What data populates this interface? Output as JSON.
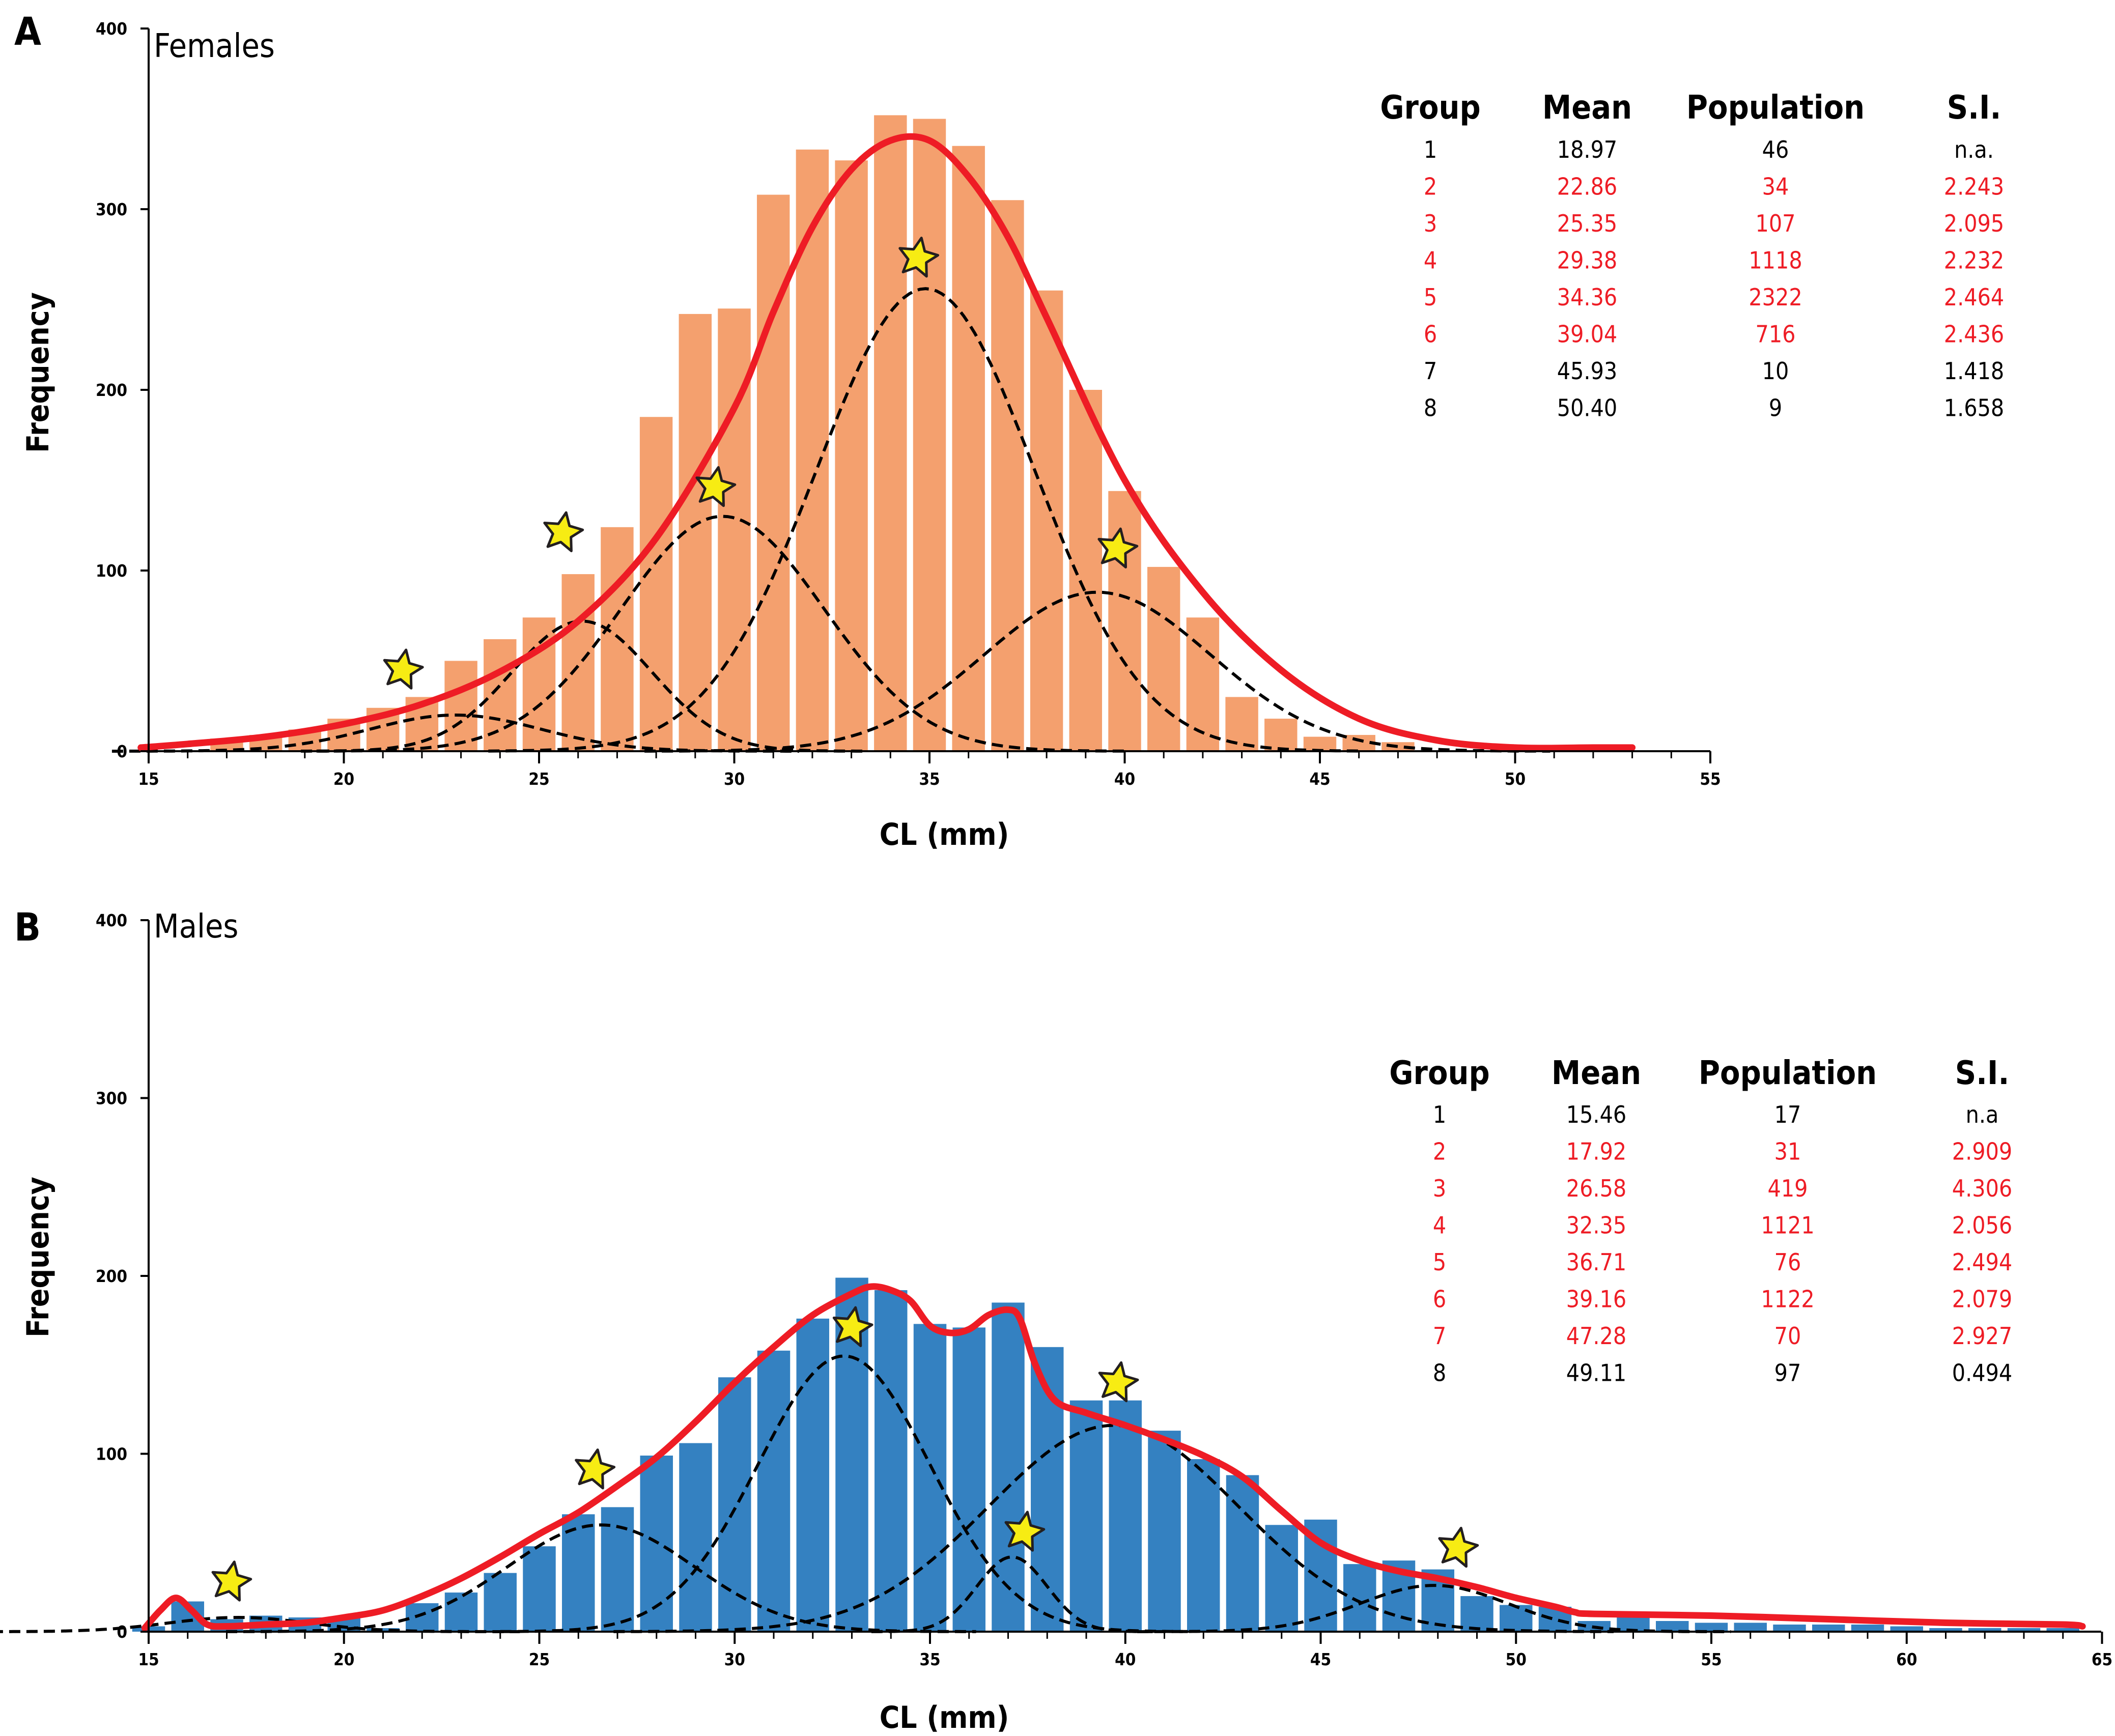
{
  "chart_data": [
    {
      "panel": "A",
      "type": "bar",
      "title": "Females",
      "xlabel": "CL (mm)",
      "ylabel": "Frequency",
      "xlim": [
        15,
        55
      ],
      "xticks": [
        15,
        20,
        25,
        30,
        35,
        40,
        45,
        50,
        55
      ],
      "ylim": [
        0,
        400
      ],
      "yticks": [
        0,
        100,
        200,
        300,
        400
      ],
      "bar_color": "#f4a06e",
      "fit_color": "#ee1c25",
      "component_color": "#000000",
      "star_color": "#f7ec13",
      "bins": {
        "x": [
          17,
          18,
          19,
          20,
          21,
          22,
          23,
          24,
          25,
          26,
          27,
          28,
          29,
          30,
          31,
          32,
          33,
          34,
          35,
          36,
          37,
          38,
          39,
          40,
          41,
          42,
          43,
          44,
          45,
          46,
          47
        ],
        "values": [
          7,
          9,
          12,
          18,
          24,
          30,
          50,
          62,
          74,
          98,
          124,
          185,
          242,
          245,
          308,
          333,
          327,
          352,
          350,
          335,
          305,
          255,
          200,
          144,
          102,
          74,
          30,
          18,
          8,
          9,
          5
        ]
      },
      "fit_curve": {
        "x": [
          14.8,
          16,
          18,
          20,
          22,
          24,
          26,
          28,
          30,
          31,
          32,
          33,
          34,
          35,
          36,
          37,
          38,
          40,
          42,
          44,
          46,
          48,
          50,
          52,
          53
        ],
        "y": [
          2,
          4,
          8,
          15,
          26,
          44,
          72,
          118,
          190,
          243,
          290,
          322,
          338,
          338,
          318,
          285,
          240,
          150,
          88,
          45,
          18,
          6,
          2,
          2,
          2
        ]
      },
      "components": [
        {
          "group": 2,
          "mean": 22.86,
          "amplitude": 20,
          "sigma": 2.2
        },
        {
          "group": 3,
          "mean": 25.35,
          "amplitude": 72,
          "sigma": 1.8,
          "display_mean": 26.1
        },
        {
          "group": 4,
          "mean": 29.38,
          "amplitude": 130,
          "sigma": 2.6,
          "display_mean": 29.7
        },
        {
          "group": 5,
          "mean": 34.36,
          "amplitude": 256,
          "sigma": 2.8,
          "display_mean": 34.9
        },
        {
          "group": 6,
          "mean": 39.04,
          "amplitude": 88,
          "sigma": 2.9,
          "display_mean": 39.3
        }
      ],
      "stars": [
        {
          "x": 21.5,
          "y": 45
        },
        {
          "x": 25.6,
          "y": 121
        },
        {
          "x": 29.5,
          "y": 146
        },
        {
          "x": 34.7,
          "y": 273
        },
        {
          "x": 39.8,
          "y": 112
        }
      ],
      "table": {
        "headers": [
          "Group",
          "Mean",
          "Population",
          "S.I."
        ],
        "rows": [
          {
            "cells": [
              "1",
              "18.97",
              "46",
              "n.a."
            ],
            "color": "#000000"
          },
          {
            "cells": [
              "2",
              "22.86",
              "34",
              "2.243"
            ],
            "color": "#ee1c25"
          },
          {
            "cells": [
              "3",
              "25.35",
              "107",
              "2.095"
            ],
            "color": "#ee1c25"
          },
          {
            "cells": [
              "4",
              "29.38",
              "1118",
              "2.232"
            ],
            "color": "#ee1c25"
          },
          {
            "cells": [
              "5",
              "34.36",
              "2322",
              "2.464"
            ],
            "color": "#ee1c25"
          },
          {
            "cells": [
              "6",
              "39.04",
              "716",
              "2.436"
            ],
            "color": "#ee1c25"
          },
          {
            "cells": [
              "7",
              "45.93",
              "10",
              "1.418"
            ],
            "color": "#000000"
          },
          {
            "cells": [
              "8",
              "50.40",
              "9",
              "1.658"
            ],
            "color": "#000000"
          }
        ]
      }
    },
    {
      "panel": "B",
      "type": "bar",
      "title": "Males",
      "xlabel": "CL (mm)",
      "ylabel": "Frequency",
      "xlim": [
        15,
        65
      ],
      "xticks": [
        15,
        20,
        25,
        30,
        35,
        40,
        45,
        50,
        55,
        60,
        65
      ],
      "ylim": [
        0,
        400
      ],
      "yticks": [
        0,
        100,
        200,
        300,
        400
      ],
      "bar_color": "#3481c1",
      "fit_color": "#ee1c25",
      "component_color": "#000000",
      "star_color": "#f7ec13",
      "bins": {
        "x": [
          15,
          16,
          17,
          18,
          19,
          20,
          21,
          22,
          23,
          24,
          25,
          26,
          27,
          28,
          29,
          30,
          31,
          32,
          33,
          34,
          35,
          36,
          37,
          38,
          39,
          40,
          41,
          42,
          43,
          44,
          45,
          46,
          47,
          48,
          49,
          50,
          51,
          52,
          53,
          54,
          55,
          56,
          57,
          58,
          59,
          60,
          61,
          62,
          63,
          64
        ],
        "values": [
          3,
          17,
          7,
          9,
          8,
          8,
          2,
          16,
          22,
          33,
          48,
          66,
          70,
          99,
          106,
          143,
          158,
          176,
          199,
          192,
          173,
          171,
          185,
          160,
          130,
          130,
          113,
          97,
          88,
          60,
          63,
          38,
          40,
          35,
          20,
          15,
          14,
          6,
          9,
          6,
          5,
          5,
          4,
          4,
          4,
          3,
          2,
          2,
          2,
          2
        ]
      },
      "fit_curve": {
        "x": [
          14.9,
          15.3,
          15.7,
          16.1,
          16.5,
          17,
          18,
          19,
          20,
          21,
          22,
          23,
          24,
          25,
          26,
          27,
          28,
          29,
          30,
          31,
          32,
          33,
          33.5,
          34,
          34.5,
          35,
          35.5,
          36,
          36.5,
          37,
          37.3,
          37.7,
          38.2,
          39,
          40,
          41,
          42,
          43,
          44,
          45,
          46,
          47,
          48,
          49,
          50,
          51,
          51.5,
          52,
          55,
          58,
          61,
          64,
          64.5
        ],
        "y": [
          2,
          12,
          19,
          12,
          4,
          3,
          4,
          5,
          8,
          12,
          20,
          30,
          42,
          55,
          67,
          82,
          98,
          118,
          140,
          160,
          178,
          190,
          194,
          192,
          186,
          172,
          168,
          170,
          178,
          181,
          176,
          150,
          130,
          123,
          116,
          108,
          99,
          87,
          68,
          50,
          40,
          34,
          30,
          25,
          19,
          14,
          11,
          10,
          9,
          7,
          5,
          4,
          3
        ]
      },
      "components": [
        {
          "group": 2,
          "mean": 17.92,
          "amplitude": 8,
          "sigma": 1.8,
          "display_mean": 17.3
        },
        {
          "group": 3,
          "mean": 26.58,
          "amplitude": 60,
          "sigma": 2.4
        },
        {
          "group": 4,
          "mean": 32.35,
          "amplitude": 155,
          "sigma": 2.2,
          "display_mean": 32.8
        },
        {
          "group": 5,
          "mean": 36.71,
          "amplitude": 42,
          "sigma": 0.9,
          "display_mean": 37.1
        },
        {
          "group": 6,
          "mean": 39.16,
          "amplitude": 116,
          "sigma": 3.2,
          "display_mean": 39.7
        },
        {
          "group": 7,
          "mean": 47.28,
          "amplitude": 26,
          "sigma": 1.9,
          "display_mean": 47.9
        }
      ],
      "stars": [
        {
          "x": 17.1,
          "y": 28
        },
        {
          "x": 26.4,
          "y": 91
        },
        {
          "x": 33.0,
          "y": 171
        },
        {
          "x": 37.4,
          "y": 56
        },
        {
          "x": 39.8,
          "y": 140
        },
        {
          "x": 48.5,
          "y": 47
        }
      ],
      "table": {
        "headers": [
          "Group",
          "Mean",
          "Population",
          "S.I."
        ],
        "rows": [
          {
            "cells": [
              "1",
              "15.46",
              "17",
              "n.a"
            ],
            "color": "#000000"
          },
          {
            "cells": [
              "2",
              "17.92",
              "31",
              "2.909"
            ],
            "color": "#ee1c25"
          },
          {
            "cells": [
              "3",
              "26.58",
              "419",
              "4.306"
            ],
            "color": "#ee1c25"
          },
          {
            "cells": [
              "4",
              "32.35",
              "1121",
              "2.056"
            ],
            "color": "#ee1c25"
          },
          {
            "cells": [
              "5",
              "36.71",
              "76",
              "2.494"
            ],
            "color": "#ee1c25"
          },
          {
            "cells": [
              "6",
              "39.16",
              "1122",
              "2.079"
            ],
            "color": "#ee1c25"
          },
          {
            "cells": [
              "7",
              "47.28",
              "70",
              "2.927"
            ],
            "color": "#ee1c25"
          },
          {
            "cells": [
              "8",
              "49.11",
              "97",
              "0.494"
            ],
            "color": "#000000"
          }
        ]
      }
    }
  ]
}
